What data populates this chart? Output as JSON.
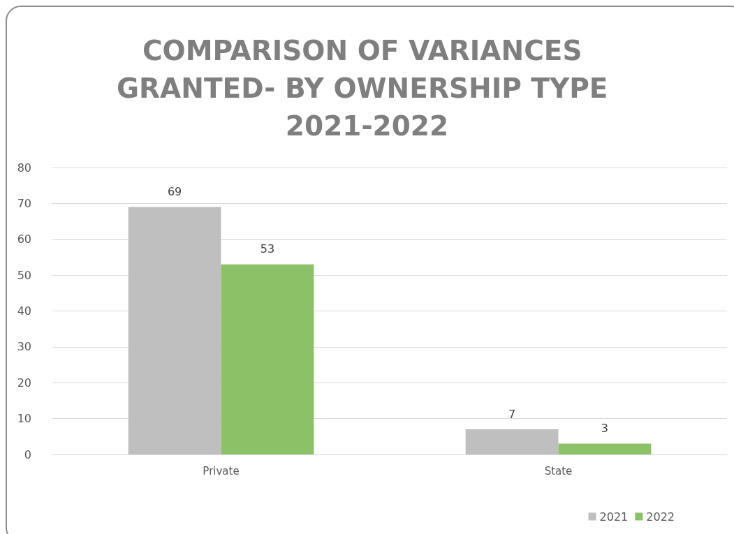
{
  "chart_data": {
    "type": "bar",
    "title": "COMPARISON OF VARIANCES GRANTED- BY OWNERSHIP TYPE 2021-2022",
    "categories": [
      "Private",
      "State"
    ],
    "series": [
      {
        "name": "2021",
        "color": "#bfbfbf",
        "values": [
          69,
          7
        ]
      },
      {
        "name": "2022",
        "color": "#8cc168",
        "values": [
          53,
          3
        ]
      }
    ],
    "ylim": [
      0,
      80
    ],
    "yticks": [
      0,
      10,
      20,
      30,
      40,
      50,
      60,
      70,
      80
    ],
    "grid": "y",
    "legend": "bottom right",
    "data_labels": true
  }
}
